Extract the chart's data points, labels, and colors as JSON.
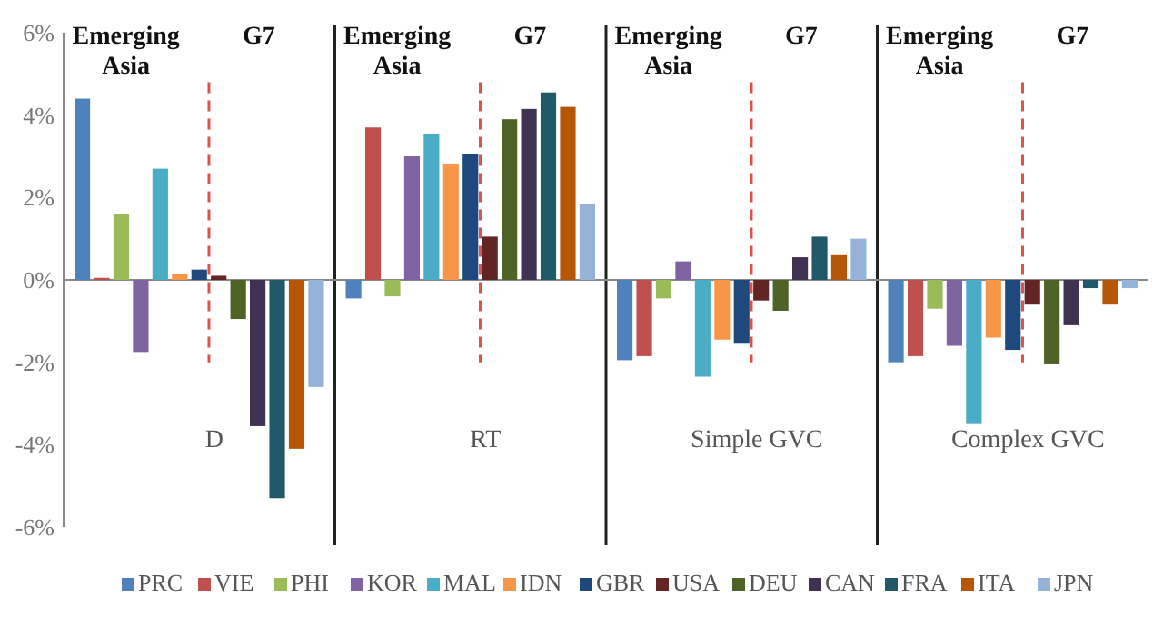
{
  "chart_data": {
    "type": "bar",
    "categories": [
      "D",
      "RT",
      "Simple GVC",
      "Complex GVC"
    ],
    "series": [
      {
        "name": "PRC",
        "color": "#4f81bd",
        "values": [
          4.4,
          -0.45,
          -1.95,
          -2.0
        ]
      },
      {
        "name": "VIE",
        "color": "#c0504d",
        "values": [
          0.05,
          3.7,
          -1.85,
          -1.85
        ]
      },
      {
        "name": "PHI",
        "color": "#9bbb59",
        "values": [
          1.6,
          -0.4,
          -0.45,
          -0.7
        ]
      },
      {
        "name": "KOR",
        "color": "#8064a2",
        "values": [
          -1.75,
          3.0,
          0.45,
          -1.6
        ]
      },
      {
        "name": "MAL",
        "color": "#4bacc6",
        "values": [
          2.7,
          3.55,
          -2.35,
          -3.5
        ]
      },
      {
        "name": "IDN",
        "color": "#f79646",
        "values": [
          0.15,
          2.8,
          -1.45,
          -1.4
        ]
      },
      {
        "name": "GBR",
        "color": "#1f497d",
        "values": [
          0.25,
          3.05,
          -1.55,
          -1.7
        ]
      },
      {
        "name": "USA",
        "color": "#632523",
        "values": [
          0.1,
          1.05,
          -0.5,
          -0.6
        ]
      },
      {
        "name": "DEU",
        "color": "#4f6228",
        "values": [
          -0.95,
          3.9,
          -0.75,
          -2.05
        ]
      },
      {
        "name": "CAN",
        "color": "#3f3151",
        "values": [
          -3.55,
          4.15,
          0.55,
          -1.1
        ]
      },
      {
        "name": "FRA",
        "color": "#215968",
        "values": [
          -5.3,
          4.55,
          1.05,
          -0.2
        ]
      },
      {
        "name": "ITA",
        "color": "#b65708",
        "values": [
          -4.1,
          4.2,
          0.6,
          -0.6
        ]
      },
      {
        "name": "JPN",
        "color": "#95b3d7",
        "values": [
          -2.6,
          1.85,
          1.0,
          -0.2
        ]
      }
    ],
    "annotations": [
      "Emerging Asia",
      "G7",
      "Emerging Asia",
      "G7",
      "Emerging Asia",
      "G7",
      "Emerging Asia",
      "G7"
    ],
    "ylim": [
      -6,
      6
    ],
    "yticks": [
      {
        "value": -6,
        "label": "-6%"
      },
      {
        "value": -4,
        "label": "-4%"
      },
      {
        "value": -2,
        "label": "-2%"
      },
      {
        "value": 0,
        "label": "0%"
      },
      {
        "value": 2,
        "label": "2%"
      },
      {
        "value": 4,
        "label": "4%"
      },
      {
        "value": 6,
        "label": "6%"
      }
    ],
    "legend": "bottom"
  }
}
